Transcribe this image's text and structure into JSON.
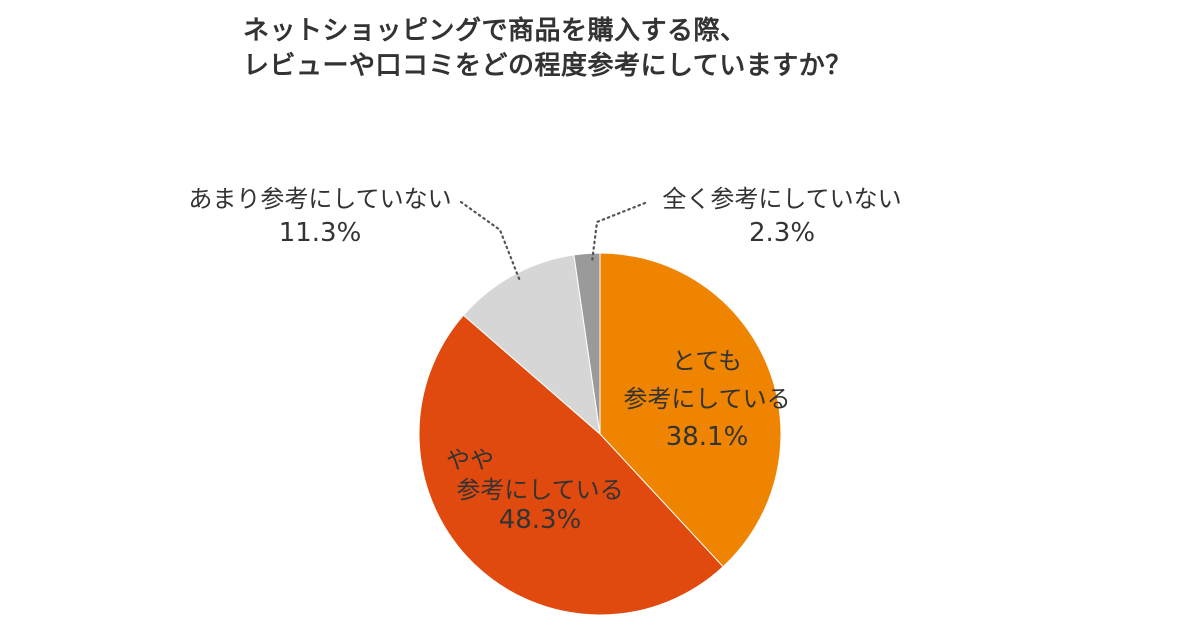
{
  "title": {
    "line1": "ネットショッピングで商品を購入する際、",
    "line2": "レビューや口コミをどの程度参考にしていますか？"
  },
  "colors": {
    "very_much": "#ee8400",
    "somewhat": "#e04a0e",
    "not_much": "#d6d6d6",
    "not_at_all": "#9a9a9a",
    "leader": "#555555",
    "text": "#333333"
  },
  "chart_data": {
    "type": "pie",
    "start": "12 o'clock, clockwise",
    "slices": [
      {
        "key": "very_much",
        "label_lines": [
          "とても",
          "参考にしている"
        ],
        "pct_text": "38.1%",
        "value": 38.1
      },
      {
        "key": "somewhat",
        "label_lines": [
          "やや",
          "参考にしている"
        ],
        "pct_text": "48.3%",
        "value": 48.3
      },
      {
        "key": "not_much",
        "label_lines": [
          "あまり参考にしていない"
        ],
        "pct_text": "11.3%",
        "value": 11.3
      },
      {
        "key": "not_at_all",
        "label_lines": [
          "全く参考にしていない"
        ],
        "pct_text": "2.3%",
        "value": 2.3
      }
    ]
  }
}
